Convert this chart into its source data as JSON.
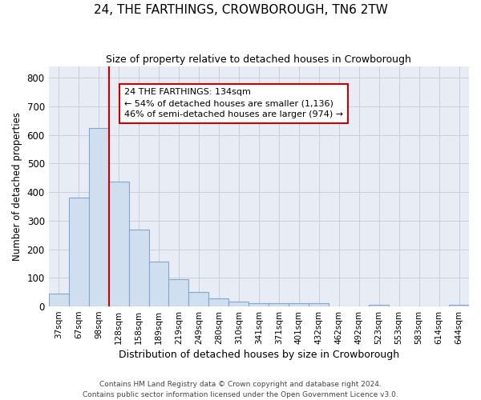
{
  "title": "24, THE FARTHINGS, CROWBOROUGH, TN6 2TW",
  "subtitle": "Size of property relative to detached houses in Crowborough",
  "xlabel": "Distribution of detached houses by size in Crowborough",
  "ylabel": "Number of detached properties",
  "categories": [
    "37sqm",
    "67sqm",
    "98sqm",
    "128sqm",
    "158sqm",
    "189sqm",
    "219sqm",
    "249sqm",
    "280sqm",
    "310sqm",
    "341sqm",
    "371sqm",
    "401sqm",
    "432sqm",
    "462sqm",
    "492sqm",
    "523sqm",
    "553sqm",
    "583sqm",
    "614sqm",
    "644sqm"
  ],
  "values": [
    46,
    381,
    625,
    438,
    268,
    157,
    95,
    51,
    29,
    16,
    11,
    11,
    11,
    10,
    0,
    0,
    7,
    0,
    0,
    0,
    7
  ],
  "bar_color": "#d0dff0",
  "bar_edge_color": "#7fa8cc",
  "marker_line_color": "#cc0000",
  "marker_line_index": 3,
  "annotation_text_line1": "24 THE FARTHINGS: 134sqm",
  "annotation_text_line2": "← 54% of detached houses are smaller (1,136)",
  "annotation_text_line3": "46% of semi-detached houses are larger (974) →",
  "annotation_box_facecolor": "#ffffff",
  "annotation_box_edgecolor": "#cc0000",
  "ylim": [
    0,
    840
  ],
  "yticks": [
    0,
    100,
    200,
    300,
    400,
    500,
    600,
    700,
    800
  ],
  "grid_color": "#c8c8d8",
  "ax_bg_color": "#e8ecf4",
  "fig_bg_color": "#ffffff",
  "footer": "Contains HM Land Registry data © Crown copyright and database right 2024.\nContains public sector information licensed under the Open Government Licence v3.0."
}
